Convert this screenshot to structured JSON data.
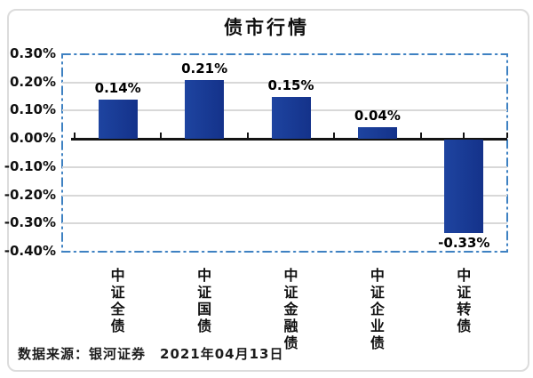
{
  "title": "债市行情",
  "footer": {
    "source": "数据来源：银河证券　2021年04月13日"
  },
  "colors": {
    "bar": "#14328a",
    "bar_light": "#1e44a0",
    "dashed": "#3e81c2",
    "grid": "#d8d8d8",
    "axis": "#141414",
    "frame": "#dcdcdc",
    "text": "#111111"
  },
  "chart_data": {
    "type": "bar",
    "title": "债市行情",
    "categories": [
      "中证全债",
      "中证国债",
      "中证金融债",
      "中证企业债",
      "中证转债"
    ],
    "values": [
      0.14,
      0.21,
      0.15,
      0.04,
      -0.33
    ],
    "value_labels": [
      "0.14%",
      "0.21%",
      "0.15%",
      "0.04%",
      "-0.33%"
    ],
    "y_ticks": [
      0.3,
      0.2,
      0.1,
      0.0,
      -0.1,
      -0.2,
      -0.3,
      -0.4
    ],
    "y_tick_labels": [
      "0.30%",
      "0.20%",
      "0.10%",
      "0.00%",
      "-0.10%",
      "-0.20%",
      "-0.30%",
      "-0.40%"
    ],
    "ylim": [
      -0.4,
      0.3
    ],
    "xlabel": "",
    "ylabel": "",
    "grid": true,
    "legend": "none",
    "plot_border": "dash-dot",
    "footer": "数据来源：银河证券　2021年04月13日"
  }
}
